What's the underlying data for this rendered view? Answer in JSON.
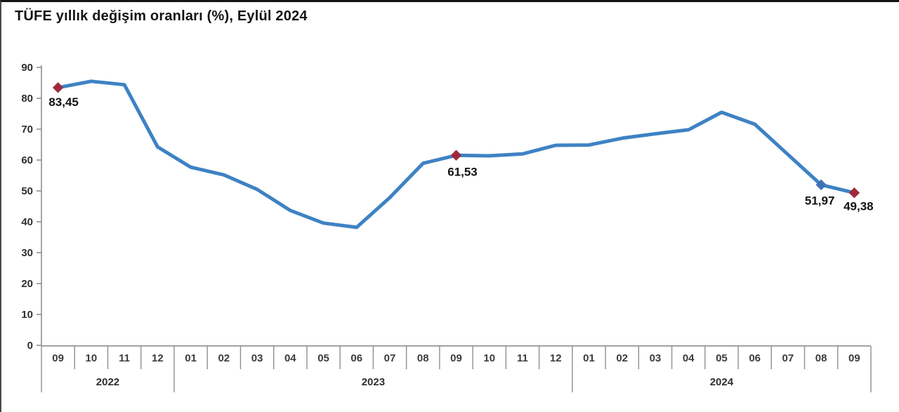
{
  "chart_data": {
    "type": "line",
    "title": "TÜFE yıllık değişim oranları (%), Eylül 2024",
    "xlabel": "",
    "ylabel": "",
    "ylim": [
      0,
      90
    ],
    "yticks": [
      0,
      10,
      20,
      30,
      40,
      50,
      60,
      70,
      80,
      90
    ],
    "grid": "off",
    "legend": "none",
    "categories": [
      "09",
      "10",
      "11",
      "12",
      "01",
      "02",
      "03",
      "04",
      "05",
      "06",
      "07",
      "08",
      "09",
      "10",
      "11",
      "12",
      "01",
      "02",
      "03",
      "04",
      "05",
      "06",
      "07",
      "08",
      "09"
    ],
    "year_groups": [
      {
        "year": "2022",
        "months": [
          "09",
          "10",
          "11",
          "12"
        ]
      },
      {
        "year": "2023",
        "months": [
          "01",
          "02",
          "03",
          "04",
          "05",
          "06",
          "07",
          "08",
          "09",
          "10",
          "11",
          "12"
        ]
      },
      {
        "year": "2024",
        "months": [
          "01",
          "02",
          "03",
          "04",
          "05",
          "06",
          "07",
          "08",
          "09"
        ]
      }
    ],
    "values": [
      83.45,
      85.51,
      84.39,
      64.27,
      57.68,
      55.18,
      50.51,
      43.68,
      39.59,
      38.21,
      47.83,
      58.94,
      61.53,
      61.36,
      61.98,
      64.77,
      64.86,
      67.07,
      68.5,
      69.8,
      75.45,
      71.6,
      61.78,
      51.97,
      49.38
    ],
    "annotations": [
      {
        "index": 0,
        "label": "83,45",
        "marker": "diamond",
        "marker_color": "#9E2B3C"
      },
      {
        "index": 12,
        "label": "61,53",
        "marker": "diamond",
        "marker_color": "#9E2B3C"
      },
      {
        "index": 23,
        "label": "51,97",
        "marker": "diamond",
        "marker_color": "#3E74B5"
      },
      {
        "index": 24,
        "label": "49,38",
        "marker": "diamond",
        "marker_color": "#9E2B3C"
      }
    ],
    "colors": {
      "line": "#3E82C4",
      "marker_red": "#9E2B3C",
      "marker_blue": "#3E74B5",
      "axis": "#8F8F8F",
      "title_text": "#141414"
    }
  }
}
